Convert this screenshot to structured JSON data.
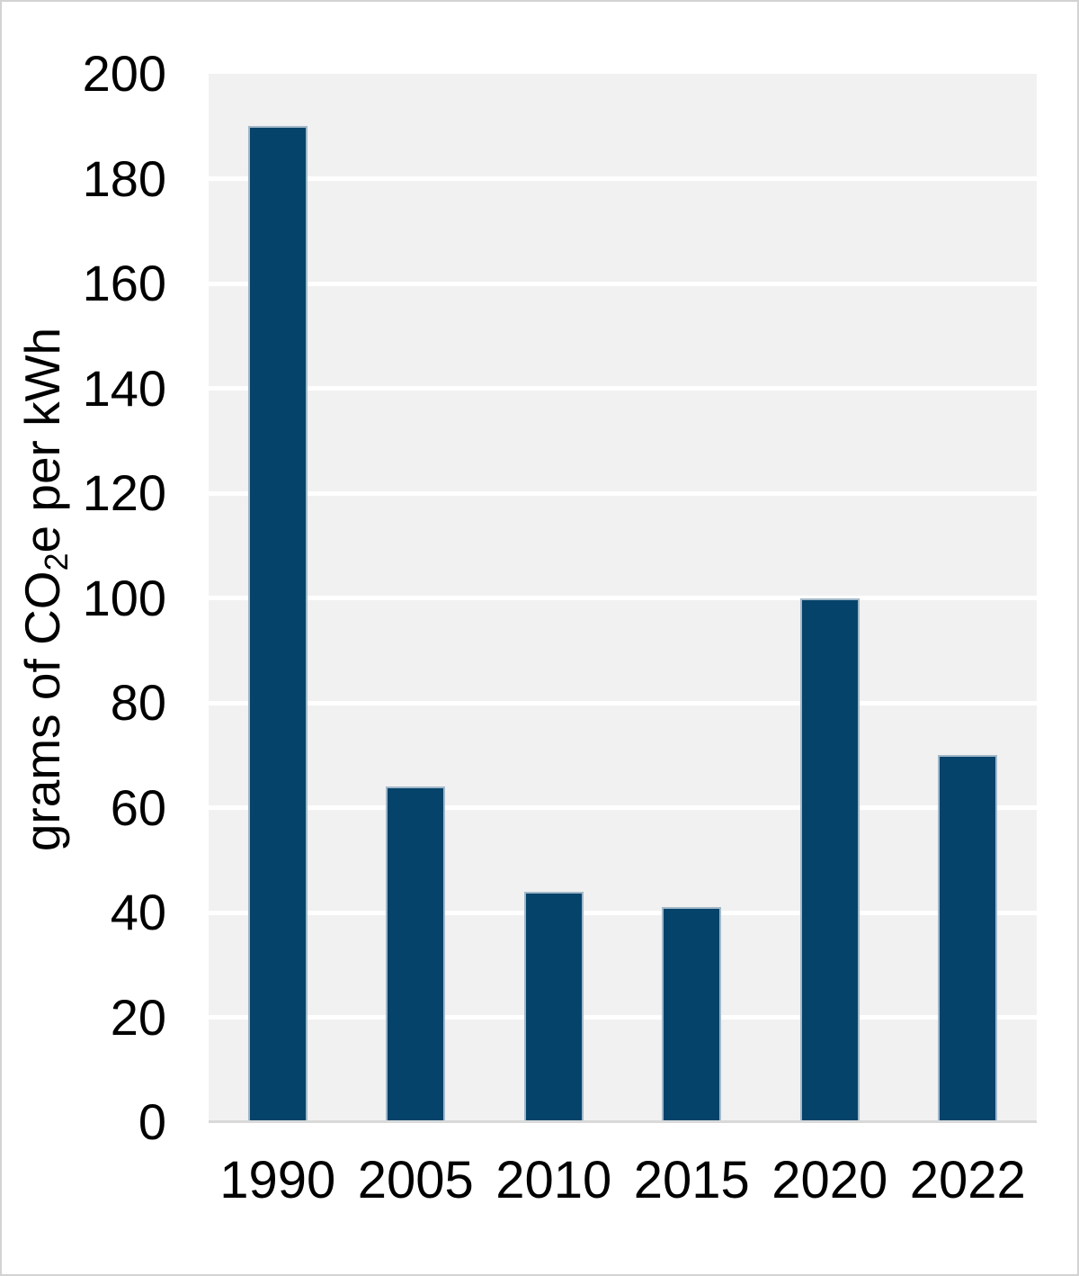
{
  "chart_data": {
    "type": "bar",
    "categories": [
      "1990",
      "2005",
      "2010",
      "2015",
      "2020",
      "2022"
    ],
    "values": [
      190,
      64,
      44,
      41,
      100,
      70
    ],
    "title": "",
    "xlabel": "",
    "ylabel": "grams of CO2e per kWh",
    "ylabel_parts": {
      "prefix": "grams of CO",
      "sub": "2",
      "suffix": "e per kWh"
    },
    "ylim": [
      0,
      200
    ],
    "yticks": [
      0,
      20,
      40,
      60,
      80,
      100,
      120,
      140,
      160,
      180,
      200
    ],
    "grid": "horizontal-white-on-gray",
    "legend": "none",
    "colors": {
      "bar": "#05436b",
      "bar_border": "#a2b8c8",
      "plot_bg": "#f1f1f1",
      "gridline": "#ffffff",
      "axis_line": "#d9d9d9",
      "text": "#000000",
      "page_border": "#d3d3d3"
    }
  }
}
